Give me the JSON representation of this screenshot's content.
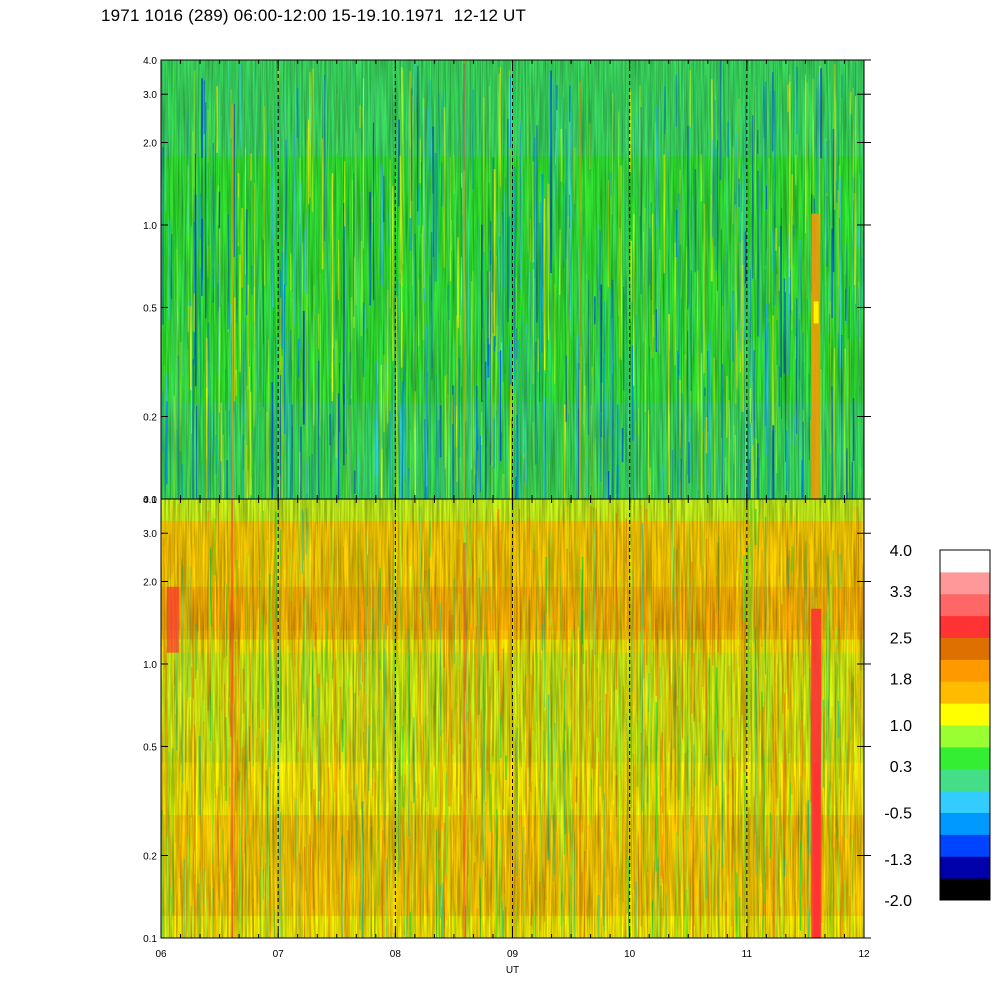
{
  "title": "1971 1016 (289) 06:00-12:00 15-19.10.1971  12-12 UT",
  "chart_data": {
    "type": "heatmap",
    "title": "1971 1016 (289) 06:00-12:00 15-19.10.1971  12-12 UT",
    "xlabel": "UT",
    "x_ticks": [
      "06",
      "07",
      "08",
      "09",
      "10",
      "11",
      "12"
    ],
    "xlim": [
      6,
      12
    ],
    "y_ticks": [
      0.1,
      0.2,
      0.5,
      1.0,
      2.0,
      3.0,
      4.0
    ],
    "y_tick_labels": [
      "0.1",
      "0.2",
      "0.5",
      "1.0",
      "2.0",
      "3.0",
      "4.0"
    ],
    "ylim": [
      0.1,
      4.0
    ],
    "y_scale": "log",
    "panels": [
      {
        "position": "top",
        "dominant_level_range": [
          -0.5,
          1.0
        ]
      },
      {
        "position": "bottom",
        "dominant_level_range": [
          0.3,
          2.5
        ]
      }
    ],
    "colorbar": {
      "tick_labels": [
        "4.0",
        "3.3",
        "2.5",
        "1.8",
        "1.0",
        "0.3",
        "-0.5",
        "-1.3",
        "-2.0"
      ],
      "range": [
        -2.0,
        4.0
      ],
      "colors": [
        "#000000",
        "#0000aa",
        "#0044ff",
        "#0099ff",
        "#33ccff",
        "#44dd88",
        "#33ee33",
        "#99ff33",
        "#ffff00",
        "#ffbb00",
        "#ff9900",
        "#dd7000",
        "#ff3333",
        "#ff6666",
        "#ff9999",
        "#ffffff"
      ]
    }
  }
}
